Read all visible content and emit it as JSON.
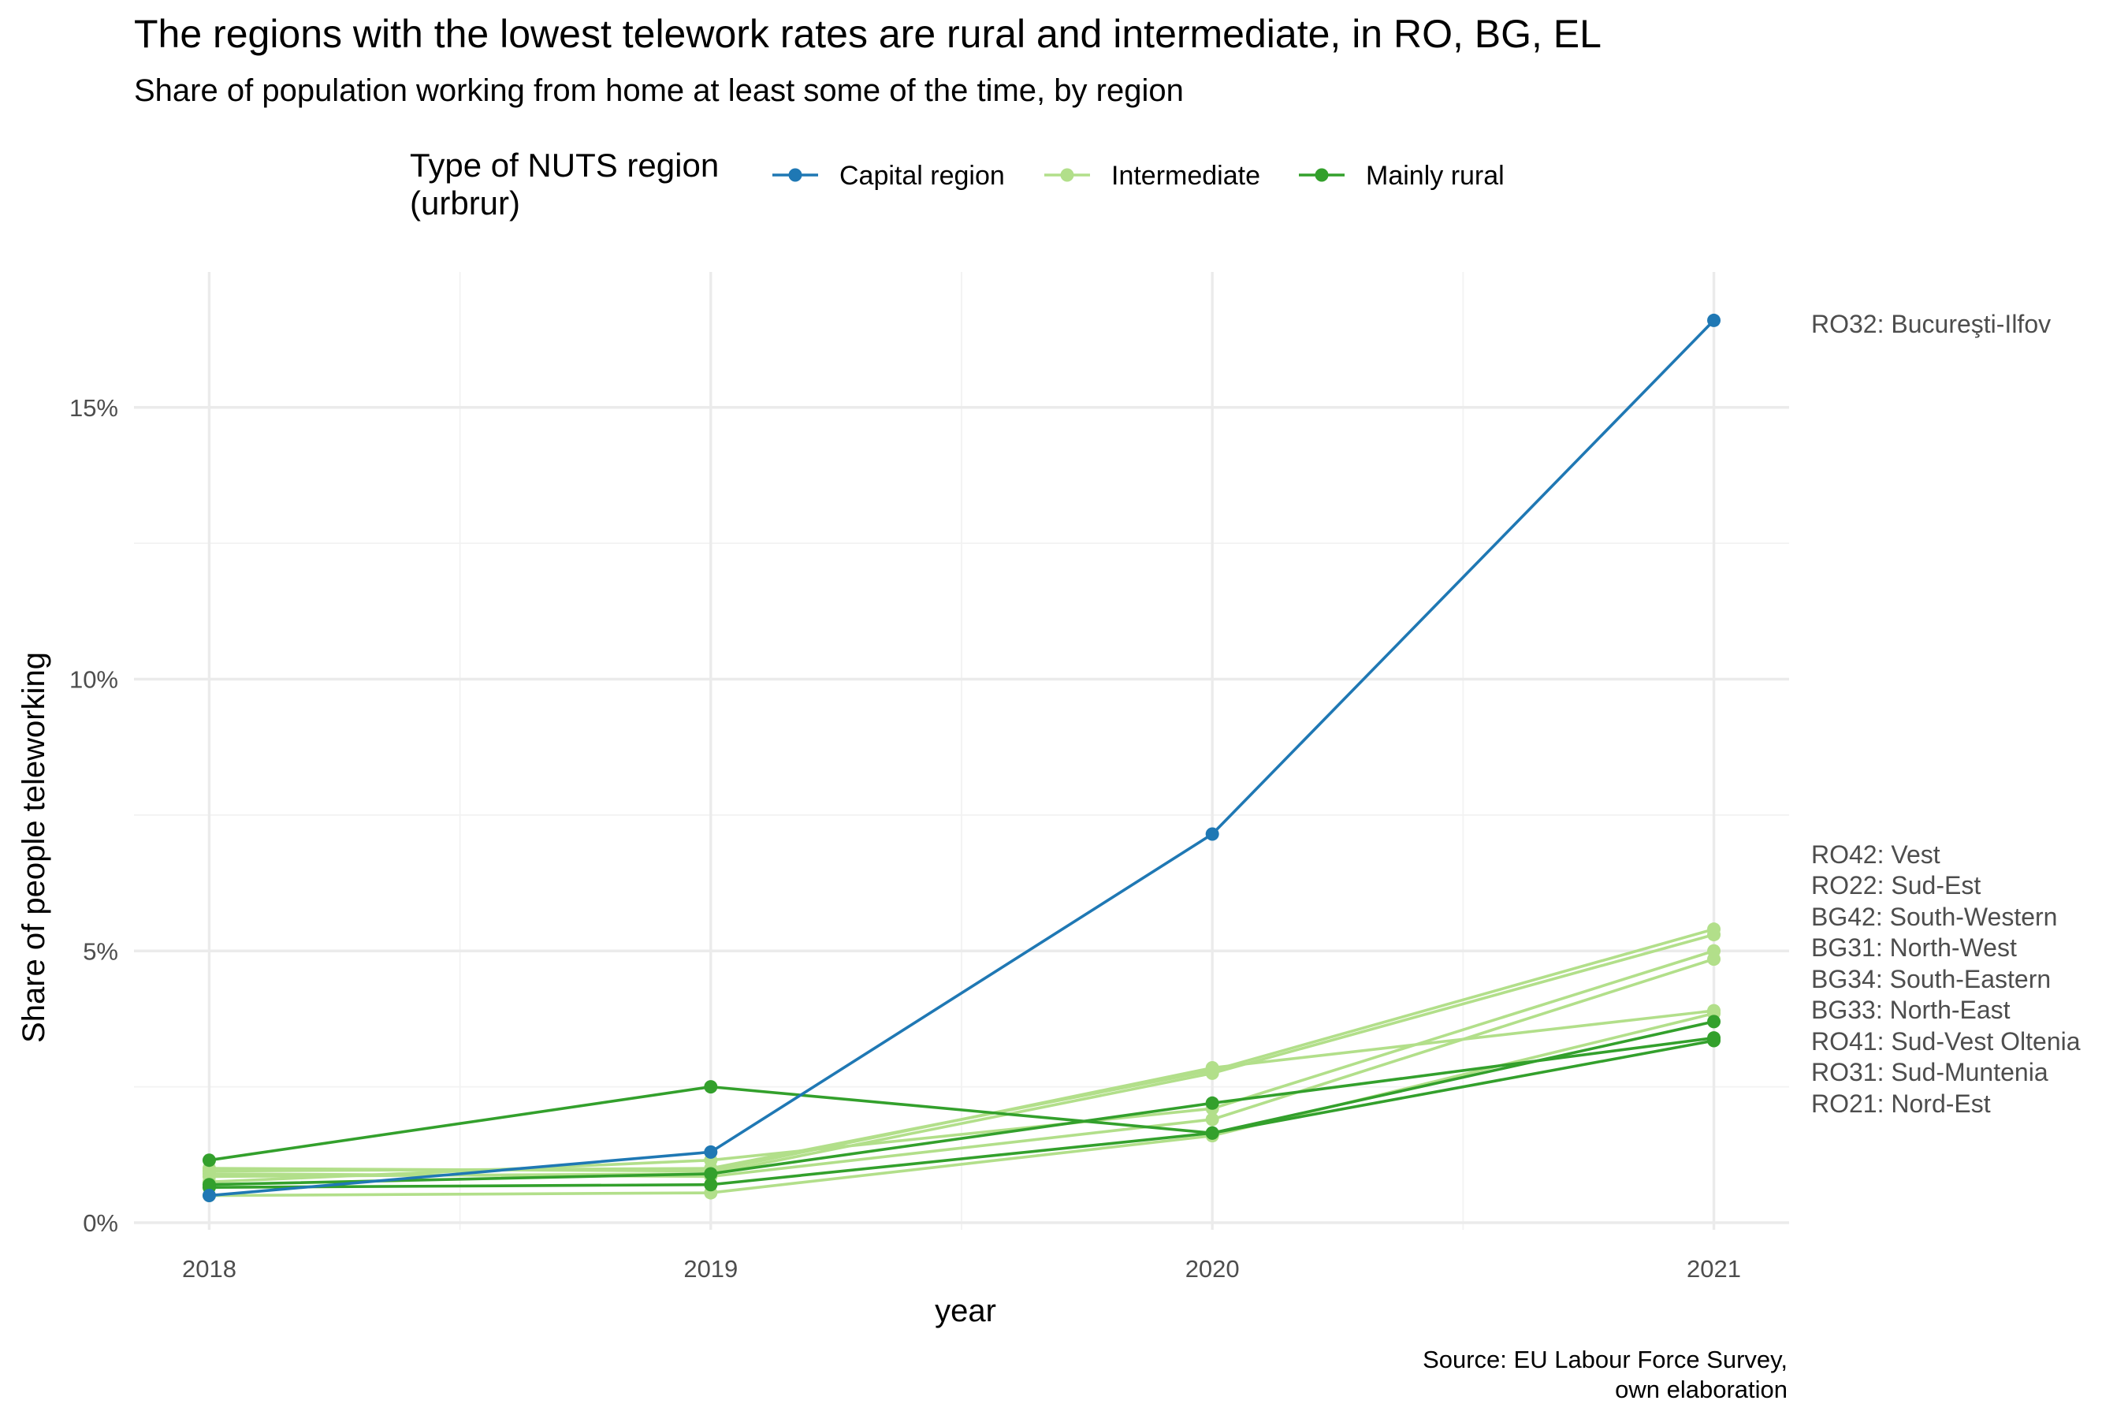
{
  "chart_data": {
    "type": "line",
    "title": "The regions with the lowest telework rates are rural and intermediate, in RO, BG, EL",
    "subtitle": "Share of population working from home at least some of the time, by region",
    "xlabel": "year",
    "ylabel": "Share of people teleworking",
    "caption": [
      "Source: EU Labour Force Survey,",
      "own elaboration"
    ],
    "x": [
      2018,
      2019,
      2020,
      2021
    ],
    "x_tick_labels": [
      "2018",
      "2019",
      "2020",
      "2021"
    ],
    "xlim": [
      2017.85,
      2021.15
    ],
    "ylim": [
      0,
      17.5
    ],
    "y_ticks": [
      0,
      5,
      10,
      15
    ],
    "y_tick_labels": [
      "0%",
      "5%",
      "10%",
      "15%"
    ],
    "grid": true,
    "legend": {
      "title_lines": [
        "Type of NUTS region",
        "(urbrur)"
      ],
      "position": "top",
      "entries": [
        {
          "label": "Capital region",
          "color": "#1f78b4"
        },
        {
          "label": "Intermediate",
          "color": "#b2df8a"
        },
        {
          "label": "Mainly rural",
          "color": "#33a02c"
        }
      ]
    },
    "end_labels": [
      "RO32: Bucureşti-Ilfov",
      "RO42: Vest",
      "RO22: Sud-Est",
      "BG42: South-Western",
      "BG31: North-West",
      "BG34: South-Eastern",
      "BG33: North-East",
      "RO41: Sud-Vest Oltenia",
      "RO31: Sud-Muntenia",
      "RO21: Nord-Est"
    ],
    "series": [
      {
        "type": "Capital region",
        "color": "#1f78b4",
        "values": [
          0.5,
          1.3,
          7.15,
          16.6
        ]
      },
      {
        "type": "Intermediate",
        "color": "#b2df8a",
        "values": [
          0.95,
          1.0,
          2.8,
          5.4
        ]
      },
      {
        "type": "Intermediate",
        "color": "#b2df8a",
        "values": [
          0.85,
          0.9,
          2.75,
          5.3
        ]
      },
      {
        "type": "Intermediate",
        "color": "#b2df8a",
        "values": [
          0.75,
          1.15,
          2.1,
          5.0
        ]
      },
      {
        "type": "Intermediate",
        "color": "#b2df8a",
        "values": [
          0.9,
          0.85,
          1.9,
          4.85
        ]
      },
      {
        "type": "Intermediate",
        "color": "#b2df8a",
        "values": [
          1.0,
          0.95,
          2.85,
          3.9
        ]
      },
      {
        "type": "Intermediate",
        "color": "#b2df8a",
        "values": [
          0.5,
          0.55,
          1.6,
          3.85
        ]
      },
      {
        "type": "Mainly rural",
        "color": "#33a02c",
        "values": [
          1.15,
          2.5,
          1.65,
          3.7
        ]
      },
      {
        "type": "Mainly rural",
        "color": "#33a02c",
        "values": [
          0.7,
          0.9,
          2.2,
          3.4
        ]
      },
      {
        "type": "Mainly rural",
        "color": "#33a02c",
        "values": [
          0.65,
          0.7,
          1.65,
          3.35
        ]
      }
    ]
  }
}
